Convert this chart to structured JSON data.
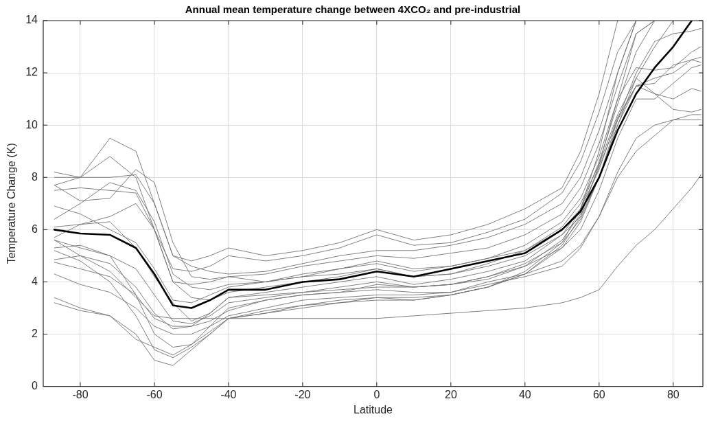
{
  "chart_data": {
    "type": "line",
    "title": "Annual mean temperature change between 4XCO₂ and pre-industrial",
    "xlabel": "Latitude",
    "ylabel": "Temperature Change (K)",
    "x": [
      -87,
      -80,
      -72,
      -65,
      -60,
      -55,
      -50,
      -45,
      -40,
      -30,
      -20,
      -10,
      0,
      10,
      20,
      30,
      40,
      50,
      55,
      60,
      65,
      70,
      75,
      80,
      85,
      87.5
    ],
    "xlim": [
      -90,
      88
    ],
    "xticks": [
      -80,
      -60,
      -40,
      -20,
      0,
      20,
      40,
      60,
      80
    ],
    "ylim": [
      0,
      14
    ],
    "yticks": [
      0,
      2,
      4,
      6,
      8,
      10,
      12,
      14
    ],
    "grid": true,
    "legend": false,
    "marker": "none",
    "line_style": "solid",
    "series": [
      {
        "color": "#707070",
        "values": [
          8.2,
          8.0,
          9.5,
          9.0,
          7.0,
          5.0,
          4.8,
          5.0,
          5.3,
          5.0,
          5.2,
          5.5,
          6.0,
          5.6,
          5.8,
          6.2,
          6.8,
          7.6,
          9.0,
          11.2,
          14.0,
          null,
          null,
          null,
          null,
          null
        ]
      },
      {
        "color": "#707070",
        "values": [
          7.7,
          8.0,
          8.8,
          8.0,
          6.0,
          4.5,
          4.4,
          4.6,
          5.0,
          4.8,
          5.0,
          5.3,
          5.8,
          5.4,
          5.5,
          5.9,
          6.4,
          7.4,
          8.6,
          10.5,
          12.8,
          14.0,
          null,
          null,
          null,
          null
        ]
      },
      {
        "color": "#707070",
        "values": [
          8.0,
          8.0,
          8.0,
          8.1,
          7.0,
          5.0,
          4.6,
          4.4,
          4.3,
          4.4,
          4.7,
          5.0,
          5.2,
          5.2,
          5.4,
          5.7,
          6.2,
          7.0,
          8.0,
          9.8,
          12.0,
          14.0,
          null,
          null,
          null,
          null
        ]
      },
      {
        "color": "#707070",
        "values": [
          7.5,
          7.6,
          7.5,
          7.4,
          6.0,
          4.0,
          3.9,
          4.0,
          4.2,
          4.3,
          4.6,
          4.8,
          5.0,
          4.9,
          5.1,
          5.3,
          5.8,
          6.6,
          7.6,
          9.3,
          11.5,
          13.5,
          14.0,
          null,
          null,
          null
        ]
      },
      {
        "color": "#707070",
        "values": [
          7.7,
          7.1,
          7.2,
          8.3,
          7.8,
          5.5,
          4.2,
          4.1,
          4.2,
          4.0,
          4.2,
          4.5,
          4.8,
          4.5,
          4.6,
          4.9,
          5.4,
          6.3,
          7.2,
          8.8,
          11.0,
          12.2,
          12.1,
          12.2,
          12.8,
          13.0
        ]
      },
      {
        "color": "#707070",
        "values": [
          6.9,
          6.6,
          6.0,
          5.5,
          4.5,
          3.3,
          3.2,
          3.5,
          3.8,
          4.0,
          4.3,
          4.5,
          4.7,
          4.4,
          4.6,
          4.9,
          5.2,
          6.0,
          6.8,
          8.3,
          10.3,
          11.5,
          11.8,
          12.0,
          12.5,
          12.6
        ]
      },
      {
        "color": "#707070",
        "values": [
          6.4,
          7.0,
          7.8,
          7.5,
          6.3,
          4.3,
          3.8,
          3.7,
          3.9,
          4.0,
          4.2,
          4.3,
          4.5,
          4.2,
          4.3,
          4.7,
          5.2,
          6.1,
          7.0,
          8.5,
          10.4,
          11.8,
          11.2,
          11.0,
          11.4,
          11.3
        ]
      },
      {
        "color": "#707070",
        "values": [
          6.1,
          6.2,
          6.5,
          7.0,
          6.0,
          4.0,
          3.4,
          3.3,
          3.6,
          3.8,
          4.0,
          4.2,
          4.5,
          4.2,
          4.3,
          4.6,
          5.0,
          5.8,
          6.5,
          8.0,
          10.0,
          11.8,
          13.0,
          14.0,
          null,
          null
        ]
      },
      {
        "color": "#707070",
        "values": [
          5.7,
          6.2,
          6.3,
          5.3,
          4.2,
          3.2,
          2.5,
          2.8,
          3.4,
          3.6,
          3.8,
          4.0,
          4.2,
          3.9,
          4.1,
          4.4,
          4.8,
          5.8,
          6.8,
          8.6,
          10.8,
          12.8,
          14.0,
          null,
          null,
          null
        ]
      },
      {
        "color": "#707070",
        "values": [
          5.6,
          5.3,
          5.0,
          4.5,
          3.5,
          2.5,
          2.4,
          2.7,
          3.2,
          3.4,
          3.6,
          3.8,
          4.0,
          3.8,
          3.9,
          4.2,
          4.7,
          5.5,
          6.4,
          8.0,
          10.2,
          12.0,
          13.2,
          13.5,
          13.6,
          13.7
        ]
      },
      {
        "color": "#707070",
        "values": [
          5.3,
          5.4,
          5.0,
          3.5,
          2.0,
          1.5,
          1.6,
          2.3,
          3.0,
          3.3,
          3.5,
          3.6,
          3.9,
          3.8,
          3.9,
          4.2,
          4.6,
          5.6,
          6.6,
          8.4,
          10.2,
          11.5,
          11.6,
          12.3,
          12.5,
          12.4
        ]
      },
      {
        "color": "#707070",
        "values": [
          4.85,
          5.0,
          4.7,
          3.8,
          2.8,
          2.2,
          2.3,
          2.8,
          3.4,
          3.5,
          3.6,
          3.7,
          3.8,
          3.8,
          3.9,
          4.1,
          4.6,
          5.3,
          6.0,
          7.5,
          9.5,
          11.0,
          11.0,
          11.6,
          12.2,
          12.3
        ]
      },
      {
        "color": "#707070",
        "values": [
          4.75,
          4.5,
          4.2,
          3.5,
          2.6,
          2.3,
          2.3,
          2.5,
          2.9,
          3.3,
          3.5,
          3.6,
          3.7,
          3.6,
          3.6,
          4.0,
          4.3,
          4.8,
          5.4,
          6.5,
          8.2,
          9.5,
          10.0,
          10.2,
          10.4,
          10.4
        ]
      },
      {
        "color": "#707070",
        "values": [
          4.3,
          3.9,
          3.6,
          3.0,
          2.3,
          2.0,
          2.0,
          2.3,
          2.7,
          3.0,
          3.3,
          3.4,
          3.5,
          3.5,
          3.6,
          3.9,
          4.2,
          4.6,
          5.3,
          6.5,
          8.0,
          9.0,
          9.6,
          10.2,
          10.2,
          10.2
        ]
      },
      {
        "color": "#707070",
        "values": [
          5.2,
          4.8,
          4.0,
          2.7,
          1.4,
          1.1,
          1.5,
          2.0,
          2.6,
          2.9,
          3.1,
          3.3,
          3.4,
          3.4,
          3.5,
          3.8,
          4.3,
          5.3,
          6.3,
          8.0,
          10.0,
          11.5,
          11.2,
          10.6,
          10.5,
          10.6
        ]
      },
      {
        "color": "#707070",
        "values": [
          3.4,
          3.0,
          2.7,
          2.0,
          1.0,
          0.8,
          1.4,
          2.0,
          2.6,
          2.8,
          3.1,
          3.2,
          3.4,
          3.3,
          3.5,
          3.8,
          4.3,
          5.4,
          6.5,
          8.5,
          11.0,
          13.5,
          14.0,
          null,
          null,
          null
        ]
      },
      {
        "color": "#707070",
        "values": [
          3.2,
          2.9,
          2.7,
          1.8,
          1.5,
          1.2,
          1.6,
          2.1,
          2.6,
          2.8,
          3.0,
          3.2,
          3.3,
          3.3,
          3.5,
          3.8,
          4.4,
          5.5,
          6.8,
          9.0,
          12.0,
          14.0,
          null,
          null,
          null,
          null
        ]
      },
      {
        "color": "#707070",
        "values": [
          5.6,
          5.0,
          4.4,
          3.4,
          2.7,
          2.6,
          2.6,
          2.6,
          2.6,
          2.6,
          2.6,
          2.6,
          2.6,
          2.7,
          2.8,
          2.9,
          3.0,
          3.2,
          3.4,
          3.7,
          4.6,
          5.4,
          6.0,
          6.8,
          7.6,
          8.1
        ]
      },
      {
        "color": "#000000",
        "values": [
          6.0,
          5.85,
          5.8,
          5.3,
          4.3,
          3.1,
          3.0,
          3.3,
          3.7,
          3.7,
          4.0,
          4.1,
          4.4,
          4.2,
          4.5,
          4.8,
          5.1,
          6.0,
          6.7,
          8.0,
          9.8,
          11.2,
          12.2,
          13.0,
          14.0,
          null
        ]
      }
    ]
  }
}
